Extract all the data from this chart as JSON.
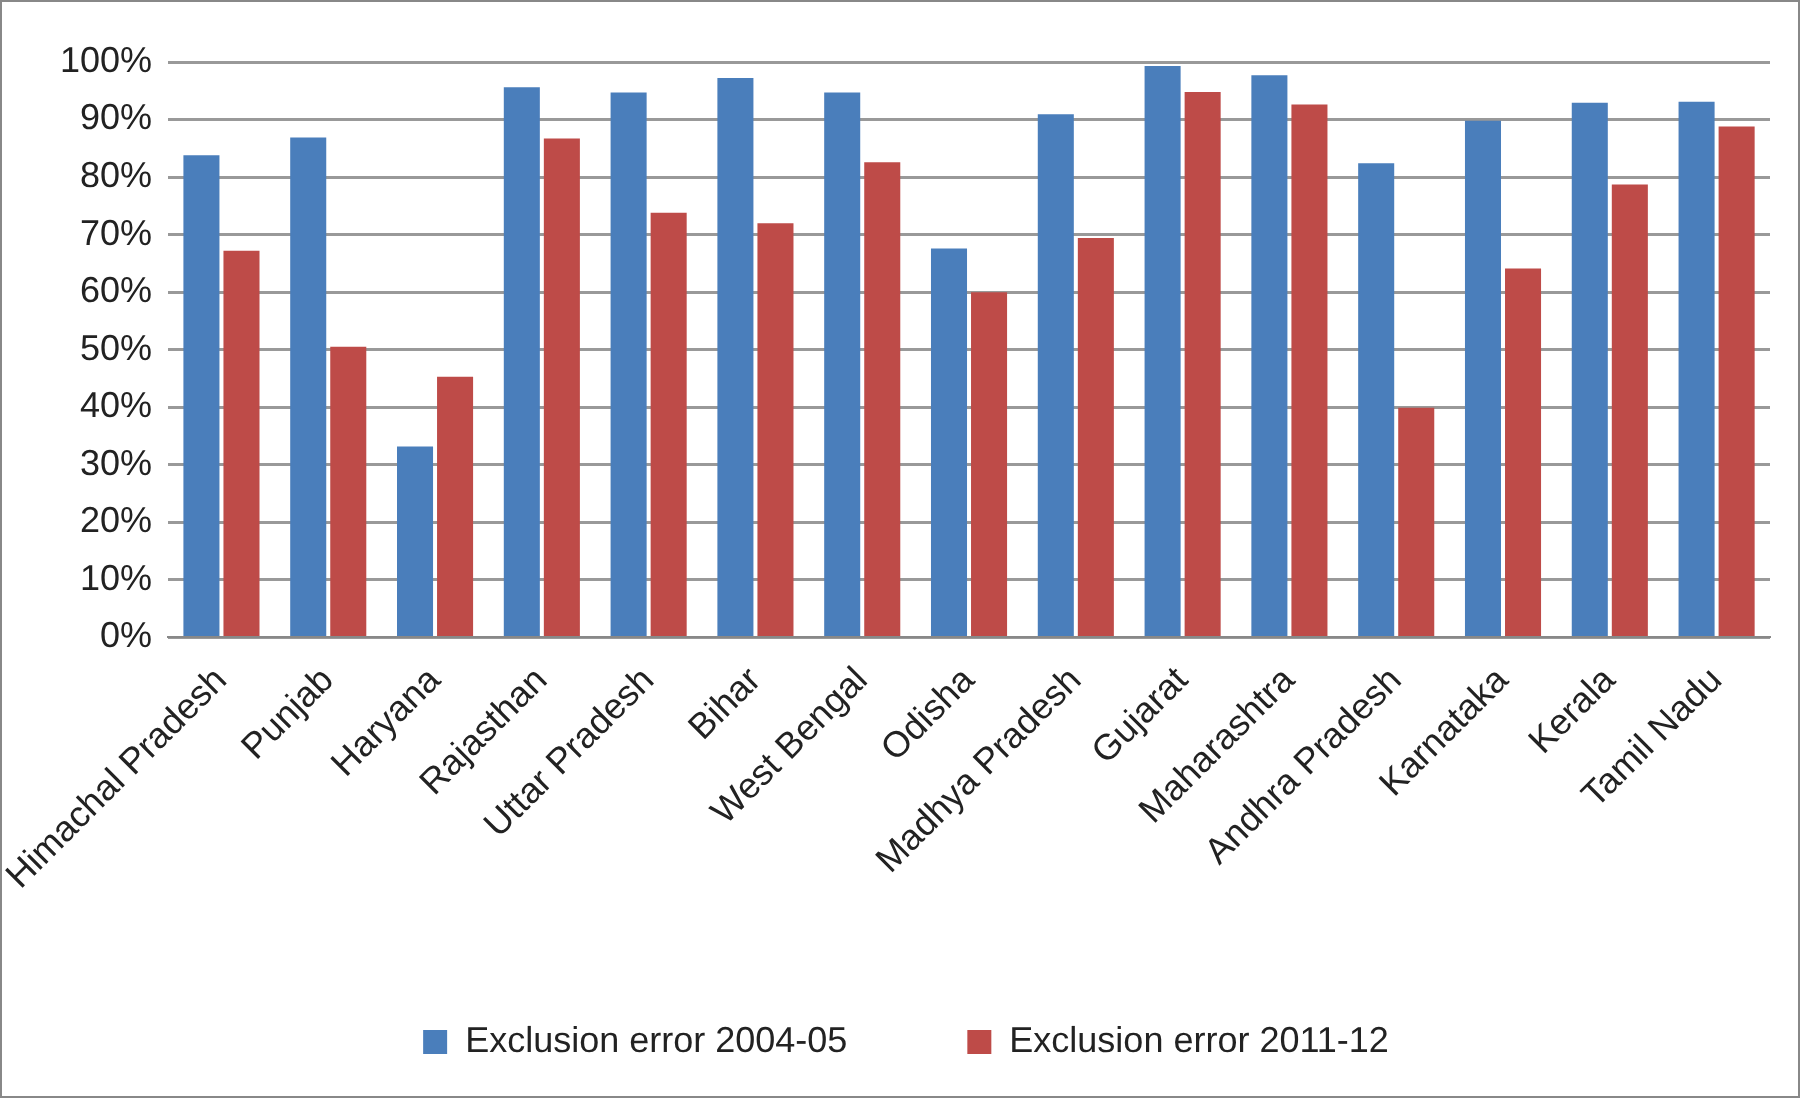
{
  "chart_data": {
    "type": "bar",
    "categories": [
      "Himachal Pradesh",
      "Punjab",
      "Haryana",
      "Rajasthan",
      "Uttar Pradesh",
      "Bihar",
      "West Bengal",
      "Odisha",
      "Madhya Pradesh",
      "Gujarat",
      "Maharashtra",
      "Andhra Pradesh",
      "Karnataka",
      "Kerala",
      "Tamil Nadu"
    ],
    "series": [
      {
        "name": "Exclusion error 2004-05",
        "color": "#4a7ebb",
        "values": [
          83.8,
          86.9,
          33.2,
          95.6,
          94.7,
          97.2,
          94.7,
          67.6,
          90.9,
          99.3,
          97.7,
          82.4,
          89.8,
          92.9,
          93.1
        ]
      },
      {
        "name": "Exclusion error 2011-12",
        "color": "#be4b48",
        "values": [
          67.2,
          50.5,
          45.3,
          86.7,
          73.8,
          72.0,
          82.6,
          60.0,
          69.4,
          94.8,
          92.6,
          39.9,
          64.1,
          78.7,
          88.8
        ]
      }
    ],
    "ylim": [
      0,
      100
    ],
    "yticks": [
      {
        "value": 0,
        "label": "0%"
      },
      {
        "value": 10,
        "label": "10%"
      },
      {
        "value": 20,
        "label": "20%"
      },
      {
        "value": 30,
        "label": "30%"
      },
      {
        "value": 40,
        "label": "40%"
      },
      {
        "value": 50,
        "label": "50%"
      },
      {
        "value": 60,
        "label": "60%"
      },
      {
        "value": 70,
        "label": "70%"
      },
      {
        "value": 80,
        "label": "80%"
      },
      {
        "value": 90,
        "label": "90%"
      },
      {
        "value": 100,
        "label": "100%"
      }
    ],
    "grid": "y",
    "legend": "bottom"
  }
}
